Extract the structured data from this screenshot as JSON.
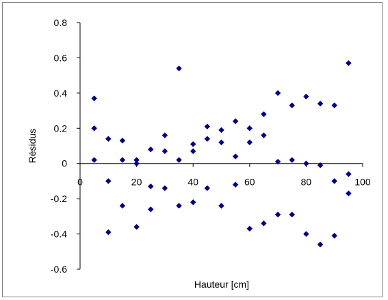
{
  "chart_data": {
    "type": "scatter",
    "title": "",
    "xlabel": "Hauteur [cm]",
    "ylabel": "Résidus",
    "xlim": [
      0,
      100
    ],
    "ylim": [
      -0.6,
      0.8
    ],
    "xticks": [
      0,
      20,
      40,
      60,
      80,
      100
    ],
    "yticks": [
      0.8,
      0.6,
      0.4,
      0.2,
      0,
      -0.2,
      -0.4,
      -0.6
    ],
    "xtick_labels": [
      "0",
      "20",
      "40",
      "60",
      "80",
      "100"
    ],
    "ytick_labels": [
      "0.8",
      "0.6",
      "0.4",
      "0.2",
      "0",
      "-0.2",
      "-0.4",
      "-0.6"
    ],
    "grid": false,
    "legend": "none",
    "colors": {
      "marker": "#000080",
      "axis": "#000000",
      "plot_background": "#ffffff",
      "frame_border": "#808080"
    },
    "series": [
      {
        "marker": "diamond",
        "points": [
          {
            "x": 5,
            "y": 0.37
          },
          {
            "x": 5,
            "y": 0.2
          },
          {
            "x": 5,
            "y": 0.02
          },
          {
            "x": 10,
            "y": 0.14
          },
          {
            "x": 10,
            "y": -0.1
          },
          {
            "x": 10,
            "y": -0.39
          },
          {
            "x": 15,
            "y": 0.13
          },
          {
            "x": 15,
            "y": 0.02
          },
          {
            "x": 15,
            "y": -0.24
          },
          {
            "x": 20,
            "y": 0.02
          },
          {
            "x": 20,
            "y": 0.0
          },
          {
            "x": 20,
            "y": -0.36
          },
          {
            "x": 25,
            "y": 0.08
          },
          {
            "x": 25,
            "y": -0.13
          },
          {
            "x": 25,
            "y": -0.26
          },
          {
            "x": 30,
            "y": 0.16
          },
          {
            "x": 30,
            "y": 0.07
          },
          {
            "x": 30,
            "y": -0.14
          },
          {
            "x": 35,
            "y": 0.54
          },
          {
            "x": 35,
            "y": 0.02
          },
          {
            "x": 35,
            "y": -0.24
          },
          {
            "x": 40,
            "y": 0.11
          },
          {
            "x": 40,
            "y": 0.07
          },
          {
            "x": 40,
            "y": -0.22
          },
          {
            "x": 45,
            "y": 0.21
          },
          {
            "x": 45,
            "y": 0.14
          },
          {
            "x": 45,
            "y": -0.14
          },
          {
            "x": 50,
            "y": 0.19
          },
          {
            "x": 50,
            "y": 0.12
          },
          {
            "x": 50,
            "y": -0.24
          },
          {
            "x": 55,
            "y": 0.24
          },
          {
            "x": 55,
            "y": 0.04
          },
          {
            "x": 55,
            "y": -0.12
          },
          {
            "x": 60,
            "y": 0.2
          },
          {
            "x": 60,
            "y": 0.12
          },
          {
            "x": 60,
            "y": -0.37
          },
          {
            "x": 65,
            "y": 0.28
          },
          {
            "x": 65,
            "y": 0.16
          },
          {
            "x": 65,
            "y": -0.34
          },
          {
            "x": 70,
            "y": 0.4
          },
          {
            "x": 70,
            "y": 0.01
          },
          {
            "x": 70,
            "y": -0.29
          },
          {
            "x": 75,
            "y": 0.33
          },
          {
            "x": 75,
            "y": 0.02
          },
          {
            "x": 75,
            "y": -0.29
          },
          {
            "x": 80,
            "y": 0.38
          },
          {
            "x": 80,
            "y": 0.0
          },
          {
            "x": 80,
            "y": -0.4
          },
          {
            "x": 85,
            "y": 0.34
          },
          {
            "x": 85,
            "y": -0.01
          },
          {
            "x": 85,
            "y": -0.46
          },
          {
            "x": 90,
            "y": 0.33
          },
          {
            "x": 90,
            "y": -0.1
          },
          {
            "x": 90,
            "y": -0.41
          },
          {
            "x": 95,
            "y": 0.57
          },
          {
            "x": 95,
            "y": -0.06
          },
          {
            "x": 95,
            "y": -0.17
          }
        ]
      }
    ]
  }
}
